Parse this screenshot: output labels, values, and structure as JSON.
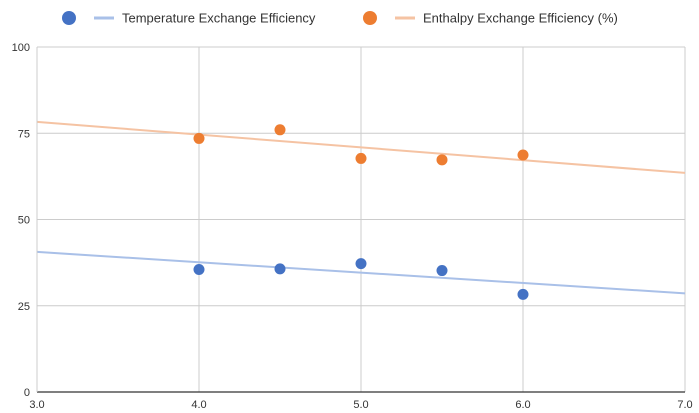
{
  "chart_data": {
    "type": "scatter",
    "title": "",
    "xlabel": "",
    "ylabel": "",
    "xlim": [
      3.0,
      7.0
    ],
    "ylim": [
      0,
      100
    ],
    "x_ticks": [
      "3.0",
      "4.0",
      "5.0",
      "6.0",
      "7.0"
    ],
    "y_ticks": [
      "0",
      "25",
      "50",
      "75",
      "100"
    ],
    "grid": true,
    "legend_position": "top",
    "series": [
      {
        "name": "Temperature Exchange Efficiency",
        "color": "#4472C4",
        "trend_color": "#A9C0E8",
        "x": [
          4.0,
          4.5,
          5.0,
          5.5,
          6.0
        ],
        "y": [
          35.5,
          35.7,
          37.2,
          35.2,
          28.3
        ],
        "trendline": {
          "type": "linear",
          "x": [
            3.0,
            7.0
          ],
          "y": [
            40.6,
            28.6
          ]
        }
      },
      {
        "name": "Enthalpy Exchange Efficiency (%)",
        "color": "#ED7D31",
        "trend_color": "#F5C3A3",
        "x": [
          4.0,
          4.5,
          5.0,
          5.5,
          6.0
        ],
        "y": [
          73.5,
          76.0,
          67.7,
          67.3,
          68.7
        ],
        "trendline": {
          "type": "linear",
          "x": [
            3.0,
            7.0
          ],
          "y": [
            78.3,
            63.5
          ]
        }
      }
    ]
  }
}
